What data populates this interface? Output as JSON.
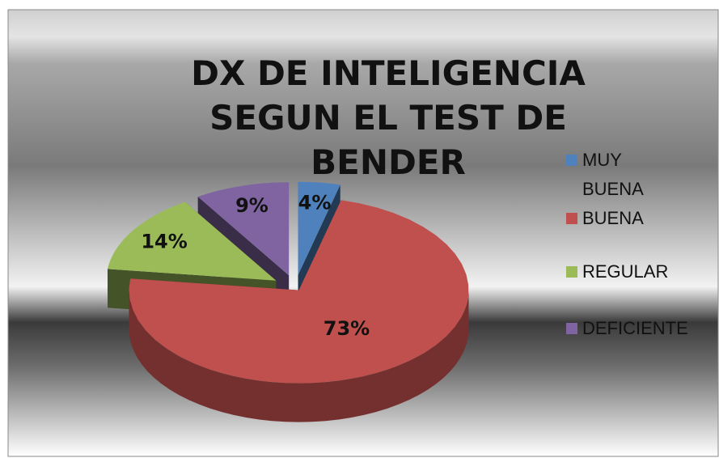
{
  "chart_data": {
    "type": "pie",
    "title": "DX DE INTELIGENCIA SEGUN EL TEST DE BENDER",
    "categories": [
      "MUY BUENA",
      "BUENA",
      "REGULAR",
      "DEFICIENTE"
    ],
    "values": [
      4,
      73,
      14,
      9
    ],
    "value_labels": [
      "4%",
      "73%",
      "14%",
      "9%"
    ],
    "colors": [
      "#4f81bd",
      "#c0504d",
      "#9bbb59",
      "#8064a2"
    ]
  }
}
